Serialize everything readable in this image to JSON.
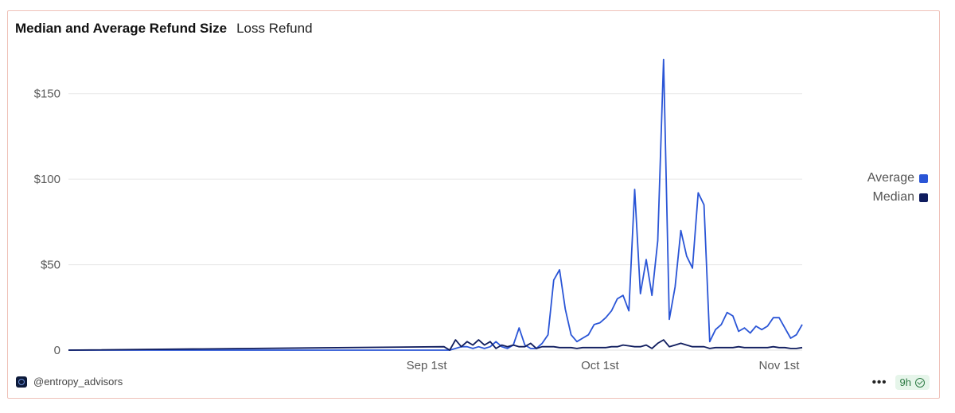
{
  "header": {
    "title": "Median and Average Refund Size",
    "subtitle": "Loss Refund"
  },
  "footer": {
    "handle": "@entropy_advisors",
    "more_label": "•••",
    "age_badge": "9h"
  },
  "colors": {
    "average": "#2a55d6",
    "median": "#0f1c5e",
    "grid": "#e8e8e8",
    "border": "#efc1b8"
  },
  "chart_data": {
    "type": "line",
    "title": "Median and Average Refund Size",
    "subtitle": "Loss Refund",
    "xlabel": "",
    "ylabel": "",
    "ylim": [
      0,
      175
    ],
    "yticks": [
      0,
      50,
      100,
      150
    ],
    "ytick_labels": [
      "0",
      "$50",
      "$100",
      "$150"
    ],
    "xticks": [
      "Sep 1st",
      "Oct 1st",
      "Nov 1st"
    ],
    "xtick_dates": [
      "2024-09-01",
      "2024-10-01",
      "2024-11-01"
    ],
    "grid": true,
    "legend": "right",
    "series": [
      {
        "name": "Average",
        "color": "#2a55d6",
        "points": [
          [
            "2024-07-01",
            0
          ],
          [
            "2024-09-05",
            0
          ],
          [
            "2024-09-07",
            2
          ],
          [
            "2024-09-08",
            2
          ],
          [
            "2024-09-09",
            1
          ],
          [
            "2024-09-10",
            2
          ],
          [
            "2024-09-11",
            1
          ],
          [
            "2024-09-12",
            2
          ],
          [
            "2024-09-13",
            5
          ],
          [
            "2024-09-14",
            2
          ],
          [
            "2024-09-15",
            1
          ],
          [
            "2024-09-16",
            3
          ],
          [
            "2024-09-17",
            13
          ],
          [
            "2024-09-18",
            3
          ],
          [
            "2024-09-19",
            1
          ],
          [
            "2024-09-20",
            1
          ],
          [
            "2024-09-21",
            4
          ],
          [
            "2024-09-22",
            9
          ],
          [
            "2024-09-23",
            41
          ],
          [
            "2024-09-24",
            47
          ],
          [
            "2024-09-25",
            24
          ],
          [
            "2024-09-26",
            9
          ],
          [
            "2024-09-27",
            5
          ],
          [
            "2024-09-28",
            7
          ],
          [
            "2024-09-29",
            9
          ],
          [
            "2024-09-30",
            15
          ],
          [
            "2024-10-01",
            16
          ],
          [
            "2024-10-02",
            19
          ],
          [
            "2024-10-03",
            23
          ],
          [
            "2024-10-04",
            30
          ],
          [
            "2024-10-05",
            32
          ],
          [
            "2024-10-06",
            23
          ],
          [
            "2024-10-07",
            94
          ],
          [
            "2024-10-08",
            33
          ],
          [
            "2024-10-09",
            53
          ],
          [
            "2024-10-10",
            32
          ],
          [
            "2024-10-11",
            64
          ],
          [
            "2024-10-12",
            170
          ],
          [
            "2024-10-13",
            18
          ],
          [
            "2024-10-14",
            37
          ],
          [
            "2024-10-15",
            70
          ],
          [
            "2024-10-16",
            55
          ],
          [
            "2024-10-17",
            48
          ],
          [
            "2024-10-18",
            92
          ],
          [
            "2024-10-19",
            85
          ],
          [
            "2024-10-20",
            5
          ],
          [
            "2024-10-21",
            12
          ],
          [
            "2024-10-22",
            15
          ],
          [
            "2024-10-23",
            22
          ],
          [
            "2024-10-24",
            20
          ],
          [
            "2024-10-25",
            11
          ],
          [
            "2024-10-26",
            13
          ],
          [
            "2024-10-27",
            10
          ],
          [
            "2024-10-28",
            14
          ],
          [
            "2024-10-29",
            12
          ],
          [
            "2024-10-30",
            14
          ],
          [
            "2024-10-31",
            19
          ],
          [
            "2024-11-01",
            19
          ],
          [
            "2024-11-02",
            13
          ],
          [
            "2024-11-03",
            7
          ],
          [
            "2024-11-04",
            9
          ],
          [
            "2024-11-05",
            15
          ]
        ]
      },
      {
        "name": "Median",
        "color": "#0f1c5e",
        "points": [
          [
            "2024-07-01",
            0
          ],
          [
            "2024-09-05",
            0
          ],
          [
            "2024-09-04",
            2
          ],
          [
            "2024-09-06",
            6
          ],
          [
            "2024-09-07",
            2
          ],
          [
            "2024-09-08",
            5
          ],
          [
            "2024-09-09",
            3
          ],
          [
            "2024-09-10",
            6
          ],
          [
            "2024-09-11",
            3
          ],
          [
            "2024-09-12",
            5
          ],
          [
            "2024-09-13",
            1
          ],
          [
            "2024-09-14",
            3
          ],
          [
            "2024-09-15",
            2
          ],
          [
            "2024-09-16",
            3
          ],
          [
            "2024-09-17",
            2
          ],
          [
            "2024-09-18",
            2
          ],
          [
            "2024-09-19",
            4
          ],
          [
            "2024-09-20",
            1
          ],
          [
            "2024-09-21",
            2
          ],
          [
            "2024-09-22",
            2
          ],
          [
            "2024-09-23",
            2
          ],
          [
            "2024-09-24",
            1.5
          ],
          [
            "2024-09-25",
            1.5
          ],
          [
            "2024-09-26",
            1.5
          ],
          [
            "2024-09-27",
            1
          ],
          [
            "2024-09-28",
            1.5
          ],
          [
            "2024-09-29",
            1.5
          ],
          [
            "2024-09-30",
            1.5
          ],
          [
            "2024-10-01",
            1.5
          ],
          [
            "2024-10-02",
            1.5
          ],
          [
            "2024-10-03",
            2
          ],
          [
            "2024-10-04",
            2
          ],
          [
            "2024-10-05",
            3
          ],
          [
            "2024-10-06",
            2.5
          ],
          [
            "2024-10-07",
            2
          ],
          [
            "2024-10-08",
            2
          ],
          [
            "2024-10-09",
            3
          ],
          [
            "2024-10-10",
            1
          ],
          [
            "2024-10-11",
            4
          ],
          [
            "2024-10-12",
            6
          ],
          [
            "2024-10-13",
            2
          ],
          [
            "2024-10-14",
            3
          ],
          [
            "2024-10-15",
            4
          ],
          [
            "2024-10-16",
            3
          ],
          [
            "2024-10-17",
            2
          ],
          [
            "2024-10-18",
            2
          ],
          [
            "2024-10-19",
            2
          ],
          [
            "2024-10-20",
            1
          ],
          [
            "2024-10-21",
            1.5
          ],
          [
            "2024-10-22",
            1.5
          ],
          [
            "2024-10-23",
            1.5
          ],
          [
            "2024-10-24",
            1.5
          ],
          [
            "2024-10-25",
            2
          ],
          [
            "2024-10-26",
            1.5
          ],
          [
            "2024-10-27",
            1.5
          ],
          [
            "2024-10-28",
            1.5
          ],
          [
            "2024-10-29",
            1.5
          ],
          [
            "2024-10-30",
            1.5
          ],
          [
            "2024-10-31",
            2
          ],
          [
            "2024-11-01",
            1.5
          ],
          [
            "2024-11-02",
            1.5
          ],
          [
            "2024-11-03",
            1
          ],
          [
            "2024-11-04",
            1
          ],
          [
            "2024-11-05",
            1.5
          ]
        ]
      }
    ]
  }
}
